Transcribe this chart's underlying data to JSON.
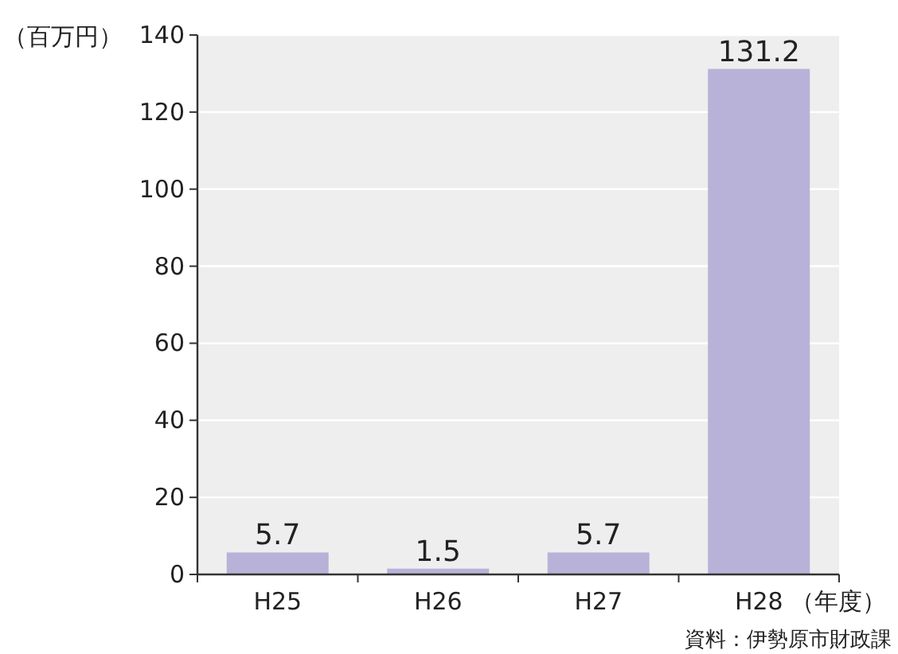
{
  "chart_data": {
    "type": "bar",
    "categories": [
      "H25",
      "H26",
      "H27",
      "H28"
    ],
    "values": [
      5.7,
      1.5,
      5.7,
      131.2
    ],
    "color": "#b8b2d8",
    "ylim": [
      0,
      140
    ],
    "yticks": [
      0,
      20,
      40,
      60,
      80,
      100,
      120,
      140
    ],
    "grid": "y",
    "data_labels": true,
    "ylabel": "（百万円）",
    "xlabel": "（年度）",
    "annotations": [
      "資料：伊勢原市財政課"
    ]
  }
}
